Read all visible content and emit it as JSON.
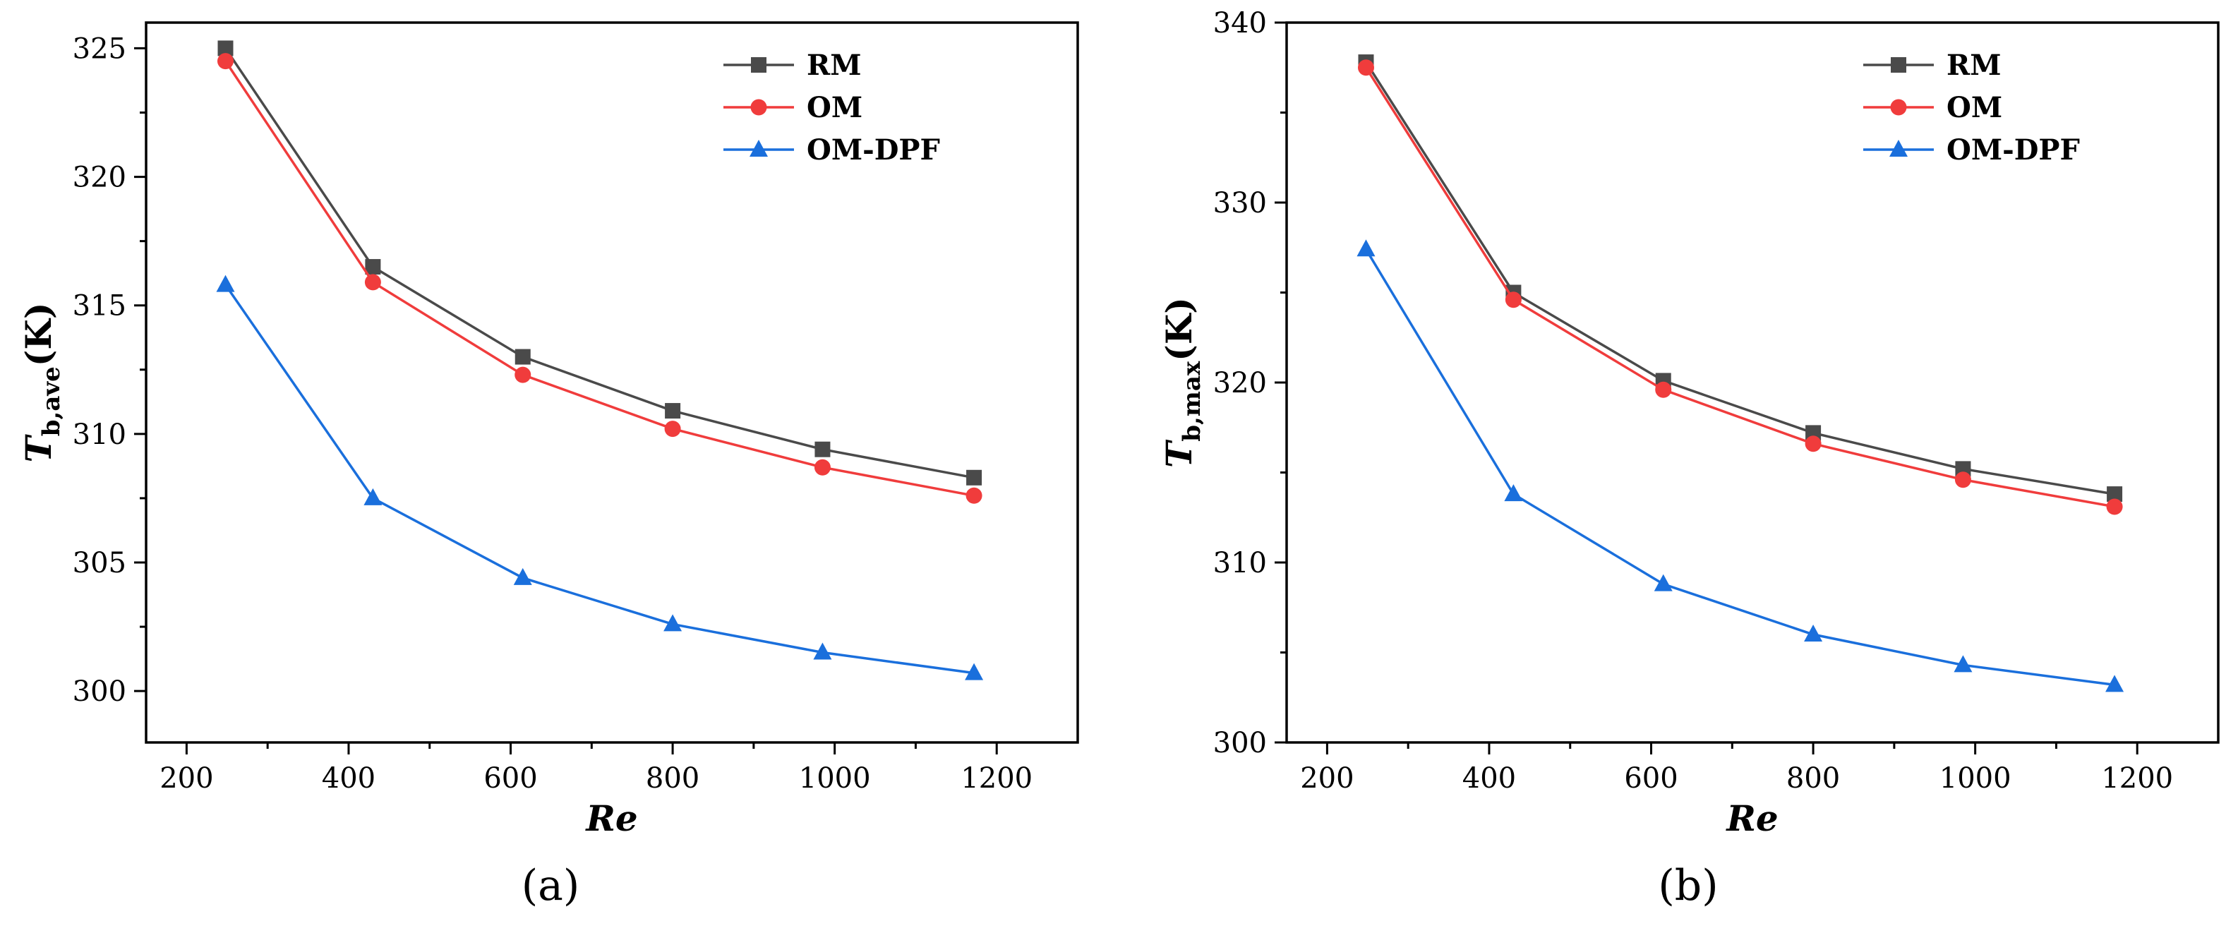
{
  "chart_data": [
    {
      "type": "line",
      "panel_label": "(a)",
      "xlabel": "Re",
      "ylabel": {
        "main": "T",
        "sub": "b,ave",
        "unit": "(K)"
      },
      "xlim": [
        150,
        1300
      ],
      "ylim": [
        298,
        326
      ],
      "xticks": [
        200,
        400,
        600,
        800,
        1000,
        1200
      ],
      "yticks": [
        300,
        305,
        310,
        315,
        320,
        325
      ],
      "x": [
        248,
        430,
        615,
        800,
        985,
        1172
      ],
      "legend_position": "top-right",
      "series": [
        {
          "name": "RM",
          "marker": "square",
          "color": "#4a4a4a",
          "values": [
            325.0,
            316.5,
            313.0,
            310.9,
            309.4,
            308.3
          ]
        },
        {
          "name": "OM",
          "marker": "circle",
          "color": "#f03c3c",
          "values": [
            324.5,
            315.9,
            312.3,
            310.2,
            308.7,
            307.6
          ]
        },
        {
          "name": "OM-DPF",
          "marker": "triangle",
          "color": "#1a6fdc",
          "values": [
            315.8,
            307.5,
            304.4,
            302.6,
            301.5,
            300.7
          ]
        }
      ]
    },
    {
      "type": "line",
      "panel_label": "(b)",
      "xlabel": "Re",
      "ylabel": {
        "main": "T",
        "sub": "b,max",
        "unit": "(K)"
      },
      "xlim": [
        150,
        1300
      ],
      "ylim": [
        300,
        340
      ],
      "xticks": [
        200,
        400,
        600,
        800,
        1000,
        1200
      ],
      "yticks": [
        300,
        310,
        320,
        330,
        340
      ],
      "x": [
        248,
        430,
        615,
        800,
        985,
        1172
      ],
      "legend_position": "top-right",
      "series": [
        {
          "name": "RM",
          "marker": "square",
          "color": "#4a4a4a",
          "values": [
            337.8,
            325.0,
            320.1,
            317.2,
            315.2,
            313.8
          ]
        },
        {
          "name": "OM",
          "marker": "circle",
          "color": "#f03c3c",
          "values": [
            337.5,
            324.6,
            319.6,
            316.6,
            314.6,
            313.1
          ]
        },
        {
          "name": "OM-DPF",
          "marker": "triangle",
          "color": "#1a6fdc",
          "values": [
            327.4,
            313.8,
            308.8,
            306.0,
            304.3,
            303.2
          ]
        }
      ]
    }
  ]
}
